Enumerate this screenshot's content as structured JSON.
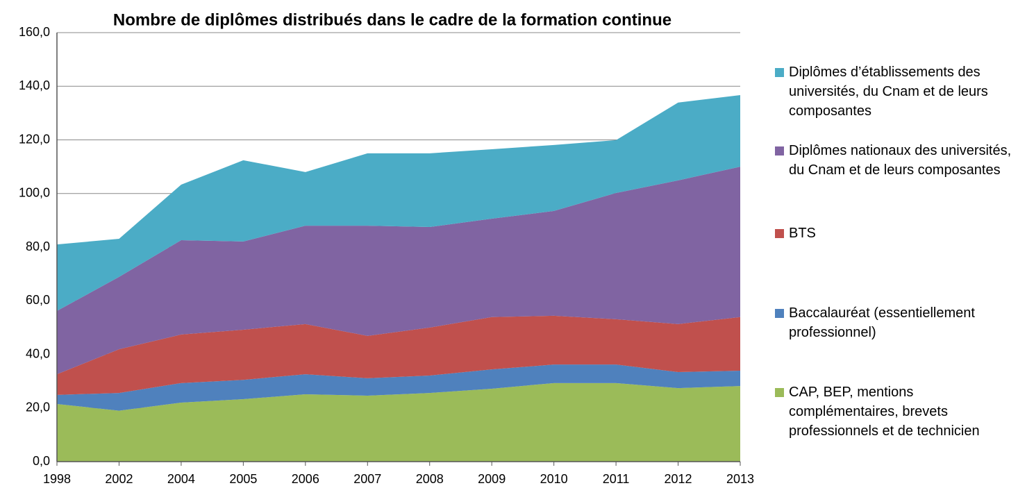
{
  "chart_data": {
    "type": "stacked_area",
    "title": "Nombre de diplômes distribués dans le cadre de la formation continue",
    "categories": [
      "1998",
      "2002",
      "2004",
      "2005",
      "2006",
      "2007",
      "2008",
      "2009",
      "2010",
      "2011",
      "2012",
      "2013"
    ],
    "series": [
      {
        "name": "CAP, BEP, mentions complémentaires, brevets professionnels et de technicien",
        "color": "#9bbb59",
        "values": [
          21.5,
          19.0,
          22.0,
          23.3,
          25.1,
          24.6,
          25.6,
          27.2,
          29.3,
          29.3,
          27.4,
          28.2
        ]
      },
      {
        "name": "Baccalauréat (essentiellement professionnel)",
        "color": "#4f81bd",
        "values": [
          3.4,
          6.6,
          7.3,
          7.2,
          7.5,
          6.5,
          6.5,
          7.2,
          6.9,
          6.9,
          6.0,
          5.7
        ]
      },
      {
        "name": "BTS",
        "color": "#c0504d",
        "values": [
          7.7,
          16.3,
          18.1,
          18.7,
          18.7,
          15.8,
          17.9,
          19.5,
          18.2,
          16.9,
          17.9,
          20.0
        ]
      },
      {
        "name": "Diplômes nationaux des universités, du Cnam et de leurs composantes",
        "color": "#8064a2",
        "values": [
          23.6,
          27.0,
          35.2,
          32.9,
          36.7,
          41.1,
          37.5,
          36.7,
          39.1,
          47.1,
          53.6,
          56.1
        ]
      },
      {
        "name": "Diplômes d’établissements des universités, du Cnam et de leurs composantes",
        "color": "#4bacc6",
        "values": [
          24.8,
          14.2,
          20.7,
          30.3,
          20.0,
          27.0,
          27.5,
          25.9,
          24.6,
          19.7,
          29.0,
          26.7
        ]
      }
    ],
    "ylim": [
      0,
      160
    ],
    "yticks": [
      {
        "value": 0,
        "label": "0,0"
      },
      {
        "value": 20,
        "label": "20,0"
      },
      {
        "value": 40,
        "label": "40,0"
      },
      {
        "value": 60,
        "label": "60,0"
      },
      {
        "value": 80,
        "label": "80,0"
      },
      {
        "value": 100,
        "label": "100,0"
      },
      {
        "value": 120,
        "label": "120,0"
      },
      {
        "value": 140,
        "label": "140,0"
      },
      {
        "value": 160,
        "label": "160,0"
      }
    ],
    "grid": true
  }
}
